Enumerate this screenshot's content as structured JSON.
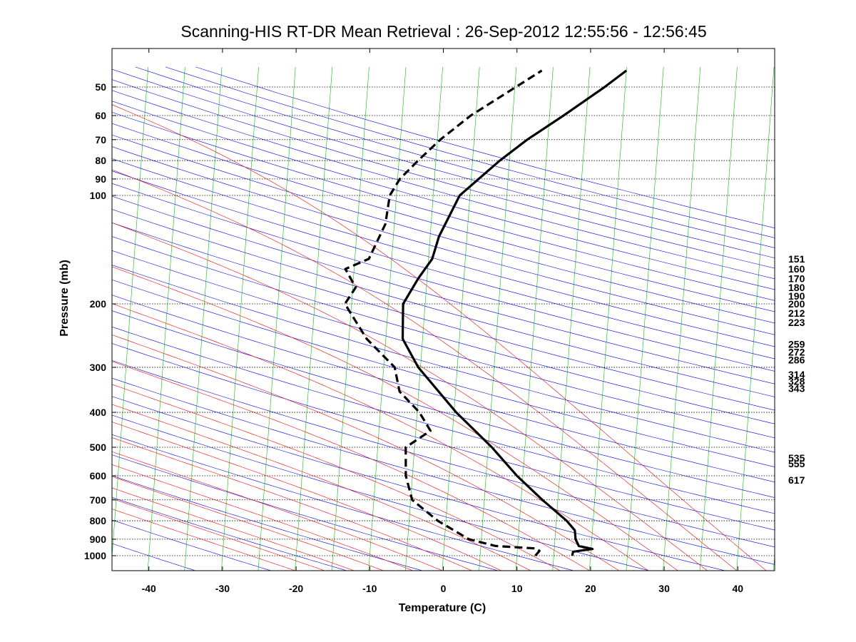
{
  "chart_data": {
    "type": "line",
    "subtype": "skew-t log-p sounding",
    "title": "Scanning-HIS RT-DR Mean Retrieval : 26-Sep-2012 12:55:56 - 12:56:45",
    "xlabel": "Temperature (C)",
    "ylabel": "Pressure (mb)",
    "xlim": [
      -45,
      45
    ],
    "ylim": [
      1100,
      45
    ],
    "y_scale": "log",
    "x_ticks": [
      -40,
      -30,
      -20,
      -10,
      0,
      10,
      20,
      30,
      40
    ],
    "y_ticks": [
      50,
      60,
      70,
      80,
      90,
      100,
      200,
      300,
      400,
      500,
      600,
      700,
      800,
      900,
      1000
    ],
    "grid": "horizontal pressure lines",
    "legend": "none",
    "colors": {
      "temperature": "#000000",
      "dewpoint": "#000000",
      "isotherm": "#00cc00",
      "dry_adiabat": "#0000ff",
      "moist_adiabat": "#ff0000",
      "grid": "#000000"
    },
    "series": [
      {
        "role": "temperature",
        "line_style": "solid",
        "points": [
          [
            1000,
            17.5
          ],
          [
            975,
            17.6
          ],
          [
            958,
            20.2
          ],
          [
            940,
            18.3
          ],
          [
            900,
            17.8
          ],
          [
            850,
            17.6
          ],
          [
            800,
            16.4
          ],
          [
            700,
            12.9
          ],
          [
            600,
            9.2
          ],
          [
            500,
            5.5
          ],
          [
            400,
            0.3
          ],
          [
            300,
            -5.3
          ],
          [
            250,
            -7.7
          ],
          [
            200,
            -8.0
          ],
          [
            170,
            -6.2
          ],
          [
            150,
            -4.5
          ],
          [
            130,
            -3.8
          ],
          [
            100,
            -1.4
          ],
          [
            80,
            3.7
          ],
          [
            70,
            7.2
          ],
          [
            60,
            11.9
          ],
          [
            50,
            17.2
          ],
          [
            45,
            20.0
          ]
        ]
      },
      {
        "role": "dewpoint",
        "line_style": "dashed",
        "points": [
          [
            1000,
            12.5
          ],
          [
            970,
            13.0
          ],
          [
            955,
            12.6
          ],
          [
            940,
            7.0
          ],
          [
            900,
            3.3
          ],
          [
            800,
            -1.1
          ],
          [
            700,
            -4.8
          ],
          [
            600,
            -5.9
          ],
          [
            500,
            -6.2
          ],
          [
            450,
            -3.0
          ],
          [
            400,
            -4.7
          ],
          [
            350,
            -7.6
          ],
          [
            300,
            -8.5
          ],
          [
            250,
            -12.6
          ],
          [
            200,
            -15.9
          ],
          [
            180,
            -14.6
          ],
          [
            160,
            -16.2
          ],
          [
            150,
            -13.1
          ],
          [
            120,
            -11.2
          ],
          [
            100,
            -10.9
          ],
          [
            90,
            -9.7
          ],
          [
            80,
            -7.4
          ],
          [
            70,
            -4.6
          ],
          [
            60,
            -0.7
          ],
          [
            45,
            8.5
          ]
        ]
      }
    ],
    "height_labels": [
      {
        "pressure": 150,
        "label": "151"
      },
      {
        "pressure": 160,
        "label": "160"
      },
      {
        "pressure": 170,
        "label": "170"
      },
      {
        "pressure": 180,
        "label": "180"
      },
      {
        "pressure": 190,
        "label": "190"
      },
      {
        "pressure": 200,
        "label": "200"
      },
      {
        "pressure": 212,
        "label": "212"
      },
      {
        "pressure": 225,
        "label": "223"
      },
      {
        "pressure": 259,
        "label": "259"
      },
      {
        "pressure": 272,
        "label": "272"
      },
      {
        "pressure": 286,
        "label": "286"
      },
      {
        "pressure": 314,
        "label": "314"
      },
      {
        "pressure": 328,
        "label": "328"
      },
      {
        "pressure": 343,
        "label": "343"
      },
      {
        "pressure": 535,
        "label": "535"
      },
      {
        "pressure": 555,
        "label": "555"
      },
      {
        "pressure": 617,
        "label": "617"
      }
    ]
  }
}
